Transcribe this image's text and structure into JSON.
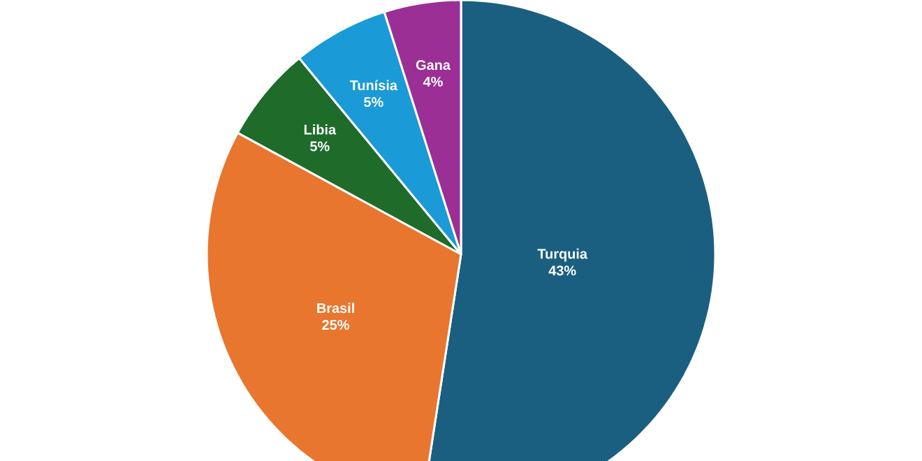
{
  "chart_data": {
    "type": "pie",
    "categories": [
      "Turquia",
      "Brasil",
      "Libia",
      "Tunísia",
      "Gana"
    ],
    "values": [
      43,
      25,
      5,
      5,
      4
    ],
    "value_labels": [
      "43%",
      "25%",
      "5%",
      "5%",
      "4%"
    ],
    "colors": [
      "#1a5f80",
      "#e8762f",
      "#1e6b2a",
      "#1a9ad6",
      "#9b2f96"
    ]
  }
}
